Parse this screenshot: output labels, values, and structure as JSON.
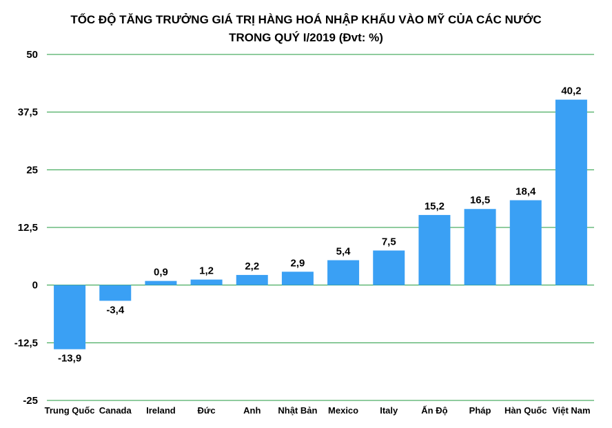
{
  "chart_data": {
    "type": "bar",
    "title_line1": "TỐC ĐỘ TĂNG TRƯỞNG GIÁ TRỊ HÀNG HOÁ NHẬP KHẨU VÀO MỸ CỦA CÁC NƯỚC",
    "title_line2": "TRONG QUÝ I/2019 (Đvt: %)",
    "categories": [
      "Trung Quốc",
      "Canada",
      "Ireland",
      "Đức",
      "Anh",
      "Nhật Bản",
      "Mexico",
      "Italy",
      "Ấn Độ",
      "Pháp",
      "Hàn Quốc",
      "Việt Nam"
    ],
    "values": [
      -13.9,
      -3.4,
      0.9,
      1.2,
      2.2,
      2.9,
      5.4,
      7.5,
      15.2,
      16.5,
      18.4,
      40.2
    ],
    "value_labels": [
      "-13,9",
      "-3,4",
      "0,9",
      "1,2",
      "2,2",
      "2,9",
      "5,4",
      "7,5",
      "15,2",
      "16,5",
      "18,4",
      "40,2"
    ],
    "yticks": [
      50,
      37.5,
      25,
      12.5,
      0,
      -12.5,
      -25
    ],
    "ytick_labels": [
      "50",
      "37,5",
      "25",
      "12,5",
      "0",
      "-12,5",
      "-25"
    ],
    "ylim": [
      -25,
      50
    ],
    "xlabel": "",
    "ylabel": "",
    "grid": true,
    "bar_color": "#3aa0f4",
    "grid_color": "#1f9a3c"
  }
}
